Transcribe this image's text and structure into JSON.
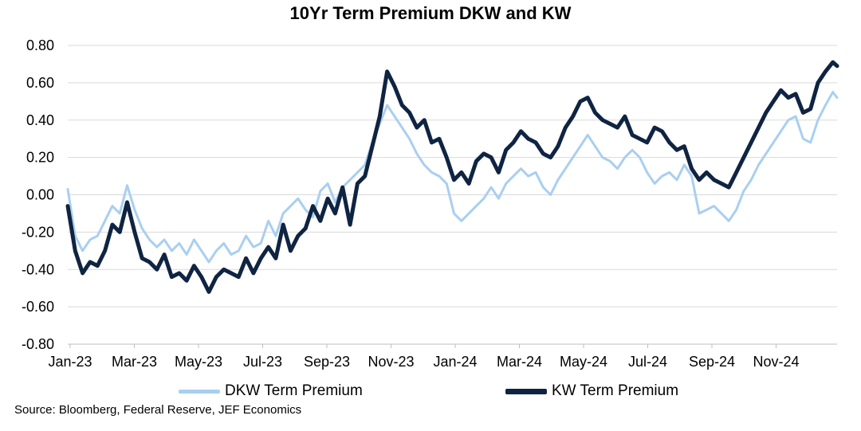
{
  "chart_data": {
    "type": "line",
    "title": "10Yr Term Premium DKW and KW",
    "xlabel": "",
    "ylabel": "",
    "x_tick_labels": [
      "Jan-23",
      "Mar-23",
      "May-23",
      "Jul-23",
      "Sep-23",
      "Nov-23",
      "Jan-24",
      "Mar-24",
      "May-24",
      "Jul-24",
      "Sep-24",
      "Nov-24"
    ],
    "y_tick_labels": [
      "0.80",
      "0.60",
      "0.40",
      "0.20",
      "0.00",
      "-0.20",
      "-0.40",
      "-0.60",
      "-0.80"
    ],
    "ylim": [
      -0.8,
      0.8
    ],
    "xlim": [
      "2023-01-02",
      "2024-12-27"
    ],
    "grid": "horizontal",
    "legend_position": "bottom",
    "source": "Source: Bloomberg, Federal Reserve, JEF Economics",
    "series": [
      {
        "name": "DKW Term Premium",
        "color": "#a9cff0",
        "x": [
          "2023-01-02",
          "2023-01-09",
          "2023-01-16",
          "2023-01-23",
          "2023-01-30",
          "2023-02-06",
          "2023-02-13",
          "2023-02-20",
          "2023-02-27",
          "2023-03-06",
          "2023-03-13",
          "2023-03-20",
          "2023-03-27",
          "2023-04-03",
          "2023-04-10",
          "2023-04-17",
          "2023-04-24",
          "2023-05-01",
          "2023-05-08",
          "2023-05-15",
          "2023-05-22",
          "2023-05-29",
          "2023-06-05",
          "2023-06-12",
          "2023-06-19",
          "2023-06-26",
          "2023-07-03",
          "2023-07-10",
          "2023-07-17",
          "2023-07-24",
          "2023-07-31",
          "2023-08-07",
          "2023-08-14",
          "2023-08-21",
          "2023-08-28",
          "2023-09-04",
          "2023-09-11",
          "2023-09-18",
          "2023-09-25",
          "2023-10-02",
          "2023-10-09",
          "2023-10-16",
          "2023-10-23",
          "2023-10-30",
          "2023-11-06",
          "2023-11-13",
          "2023-11-20",
          "2023-11-27",
          "2023-12-04",
          "2023-12-11",
          "2023-12-18",
          "2023-12-25",
          "2024-01-01",
          "2024-01-08",
          "2024-01-15",
          "2024-01-22",
          "2024-01-29",
          "2024-02-05",
          "2024-02-12",
          "2024-02-19",
          "2024-02-26",
          "2024-03-04",
          "2024-03-11",
          "2024-03-18",
          "2024-03-25",
          "2024-04-01",
          "2024-04-08",
          "2024-04-15",
          "2024-04-22",
          "2024-04-29",
          "2024-05-06",
          "2024-05-13",
          "2024-05-20",
          "2024-05-27",
          "2024-06-03",
          "2024-06-10",
          "2024-06-17",
          "2024-06-24",
          "2024-07-01",
          "2024-07-08",
          "2024-07-15",
          "2024-07-22",
          "2024-07-29",
          "2024-08-05",
          "2024-08-12",
          "2024-08-19",
          "2024-08-26",
          "2024-09-02",
          "2024-09-09",
          "2024-09-16",
          "2024-09-23",
          "2024-09-30",
          "2024-10-07",
          "2024-10-14",
          "2024-10-21",
          "2024-10-28",
          "2024-11-04",
          "2024-11-11",
          "2024-11-18",
          "2024-11-25",
          "2024-12-02",
          "2024-12-09",
          "2024-12-16",
          "2024-12-23",
          "2024-12-27"
        ],
        "values": [
          0.03,
          -0.22,
          -0.3,
          -0.24,
          -0.22,
          -0.14,
          -0.06,
          -0.1,
          0.05,
          -0.08,
          -0.18,
          -0.24,
          -0.28,
          -0.24,
          -0.3,
          -0.26,
          -0.32,
          -0.24,
          -0.3,
          -0.36,
          -0.3,
          -0.26,
          -0.32,
          -0.3,
          -0.22,
          -0.28,
          -0.26,
          -0.14,
          -0.22,
          -0.1,
          -0.06,
          -0.02,
          -0.08,
          -0.12,
          0.02,
          0.06,
          -0.04,
          0.04,
          0.08,
          0.12,
          0.16,
          0.28,
          0.38,
          0.48,
          0.42,
          0.36,
          0.3,
          0.22,
          0.16,
          0.12,
          0.1,
          0.06,
          -0.1,
          -0.14,
          -0.1,
          -0.06,
          -0.02,
          0.04,
          -0.02,
          0.06,
          0.1,
          0.14,
          0.1,
          0.12,
          0.04,
          0.0,
          0.08,
          0.14,
          0.2,
          0.26,
          0.32,
          0.26,
          0.2,
          0.18,
          0.14,
          0.2,
          0.24,
          0.2,
          0.12,
          0.06,
          0.1,
          0.12,
          0.08,
          0.16,
          0.1,
          -0.1,
          -0.08,
          -0.06,
          -0.1,
          -0.14,
          -0.08,
          0.02,
          0.08,
          0.16,
          0.22,
          0.28,
          0.34,
          0.4,
          0.42,
          0.3,
          0.28,
          0.4,
          0.48,
          0.55,
          0.52
        ]
      },
      {
        "name": "KW Term Premium",
        "color": "#0f2442",
        "x": [
          "2023-01-02",
          "2023-01-09",
          "2023-01-16",
          "2023-01-23",
          "2023-01-30",
          "2023-02-06",
          "2023-02-13",
          "2023-02-20",
          "2023-02-27",
          "2023-03-06",
          "2023-03-13",
          "2023-03-20",
          "2023-03-27",
          "2023-04-03",
          "2023-04-10",
          "2023-04-17",
          "2023-04-24",
          "2023-05-01",
          "2023-05-08",
          "2023-05-15",
          "2023-05-22",
          "2023-05-29",
          "2023-06-05",
          "2023-06-12",
          "2023-06-19",
          "2023-06-26",
          "2023-07-03",
          "2023-07-10",
          "2023-07-17",
          "2023-07-24",
          "2023-07-31",
          "2023-08-07",
          "2023-08-14",
          "2023-08-21",
          "2023-08-28",
          "2023-09-04",
          "2023-09-11",
          "2023-09-18",
          "2023-09-25",
          "2023-10-02",
          "2023-10-09",
          "2023-10-16",
          "2023-10-23",
          "2023-10-30",
          "2023-11-06",
          "2023-11-13",
          "2023-11-20",
          "2023-11-27",
          "2023-12-04",
          "2023-12-11",
          "2023-12-18",
          "2023-12-25",
          "2024-01-01",
          "2024-01-08",
          "2024-01-15",
          "2024-01-22",
          "2024-01-29",
          "2024-02-05",
          "2024-02-12",
          "2024-02-19",
          "2024-02-26",
          "2024-03-04",
          "2024-03-11",
          "2024-03-18",
          "2024-03-25",
          "2024-04-01",
          "2024-04-08",
          "2024-04-15",
          "2024-04-22",
          "2024-04-29",
          "2024-05-06",
          "2024-05-13",
          "2024-05-20",
          "2024-05-27",
          "2024-06-03",
          "2024-06-10",
          "2024-06-17",
          "2024-06-24",
          "2024-07-01",
          "2024-07-08",
          "2024-07-15",
          "2024-07-22",
          "2024-07-29",
          "2024-08-05",
          "2024-08-12",
          "2024-08-19",
          "2024-08-26",
          "2024-09-02",
          "2024-09-09",
          "2024-09-16",
          "2024-09-23",
          "2024-09-30",
          "2024-10-07",
          "2024-10-14",
          "2024-10-21",
          "2024-10-28",
          "2024-11-04",
          "2024-11-11",
          "2024-11-18",
          "2024-11-25",
          "2024-12-02",
          "2024-12-09",
          "2024-12-16",
          "2024-12-23",
          "2024-12-27"
        ],
        "values": [
          -0.06,
          -0.3,
          -0.42,
          -0.36,
          -0.38,
          -0.3,
          -0.16,
          -0.2,
          -0.04,
          -0.2,
          -0.34,
          -0.36,
          -0.4,
          -0.32,
          -0.44,
          -0.42,
          -0.46,
          -0.38,
          -0.44,
          -0.52,
          -0.44,
          -0.4,
          -0.42,
          -0.44,
          -0.34,
          -0.42,
          -0.34,
          -0.28,
          -0.34,
          -0.16,
          -0.3,
          -0.22,
          -0.18,
          -0.06,
          -0.14,
          -0.02,
          -0.1,
          0.04,
          -0.16,
          0.06,
          0.1,
          0.26,
          0.42,
          0.66,
          0.58,
          0.48,
          0.44,
          0.36,
          0.4,
          0.28,
          0.3,
          0.2,
          0.08,
          0.12,
          0.06,
          0.18,
          0.22,
          0.2,
          0.12,
          0.24,
          0.28,
          0.34,
          0.3,
          0.28,
          0.22,
          0.2,
          0.26,
          0.36,
          0.42,
          0.5,
          0.52,
          0.44,
          0.4,
          0.38,
          0.36,
          0.42,
          0.32,
          0.3,
          0.28,
          0.36,
          0.34,
          0.28,
          0.24,
          0.26,
          0.14,
          0.08,
          0.12,
          0.08,
          0.06,
          0.04,
          0.12,
          0.2,
          0.28,
          0.36,
          0.44,
          0.5,
          0.56,
          0.52,
          0.54,
          0.44,
          0.46,
          0.6,
          0.66,
          0.71,
          0.69
        ]
      }
    ]
  }
}
